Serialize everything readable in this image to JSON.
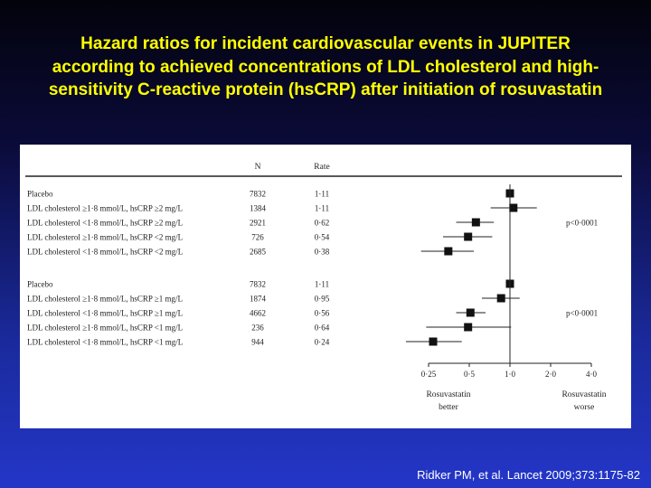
{
  "title_lines": [
    "Hazard ratios for incident cardiovascular events in JUPITER",
    "according to achieved concentrations of LDL cholesterol and high-",
    "sensitivity C-reactive protein (hsCRP) after initiation of rosuvastatin"
  ],
  "citation": "Ridker PM, et al. Lancet 2009;373:1175-82",
  "chart_data": {
    "type": "forest",
    "columns": {
      "n": "N",
      "rate": "Rate"
    },
    "x_scale": "log",
    "x_ticks": [
      {
        "value": 0.25,
        "label": "0·25"
      },
      {
        "value": 0.5,
        "label": "0·5"
      },
      {
        "value": 1.0,
        "label": "1·0"
      },
      {
        "value": 2.0,
        "label": "2·0"
      },
      {
        "value": 4.0,
        "label": "4·0"
      }
    ],
    "xlim": [
      0.22,
      4.2
    ],
    "reference_line": 1.0,
    "x_annotations": {
      "left": [
        "Rosuvastatin",
        "better"
      ],
      "right": [
        "Rosuvastatin",
        "worse"
      ]
    },
    "groups": [
      {
        "p_value": "p<0·0001",
        "rows": [
          {
            "label": "Placebo",
            "n": "7832",
            "rate": "1·11",
            "hr": 1.0,
            "ci": [
              0.96,
              1.04
            ]
          },
          {
            "label": "LDL cholesterol ≥1·8 mmol/L, hsCRP ≥2 mg/L",
            "n": "1384",
            "rate": "1·11",
            "hr": 1.06,
            "ci": [
              0.72,
              1.58
            ]
          },
          {
            "label": "LDL cholesterol <1·8 mmol/L, hsCRP ≥2 mg/L",
            "n": "2921",
            "rate": "0·62",
            "hr": 0.56,
            "ci": [
              0.4,
              0.76
            ]
          },
          {
            "label": "LDL cholesterol ≥1·8 mmol/L, hsCRP <2 mg/L",
            "n": "726",
            "rate": "0·54",
            "hr": 0.49,
            "ci": [
              0.32,
              0.74
            ]
          },
          {
            "label": "LDL cholesterol <1·8 mmol/L, hsCRP <2 mg/L",
            "n": "2685",
            "rate": "0·38",
            "hr": 0.35,
            "ci": [
              0.22,
              0.54
            ]
          }
        ]
      },
      {
        "p_value": "p<0·0001",
        "rows": [
          {
            "label": "Placebo",
            "n": "7832",
            "rate": "1·11",
            "hr": 1.0,
            "ci": [
              0.96,
              1.04
            ]
          },
          {
            "label": "LDL cholesterol ≥1·8 mmol/L, hsCRP ≥1 mg/L",
            "n": "1874",
            "rate": "0·95",
            "hr": 0.86,
            "ci": [
              0.62,
              1.18
            ]
          },
          {
            "label": "LDL cholesterol <1·8 mmol/L, hsCRP ≥1 mg/L",
            "n": "4662",
            "rate": "0·56",
            "hr": 0.51,
            "ci": [
              0.4,
              0.66
            ]
          },
          {
            "label": "LDL cholesterol ≥1·8 mmol/L, hsCRP <1 mg/L",
            "n": "236",
            "rate": "0·64",
            "hr": 0.49,
            "ci": [
              0.24,
              1.02
            ]
          },
          {
            "label": "LDL cholesterol <1·8 mmol/L, hsCRP <1 mg/L",
            "n": "944",
            "rate": "0·24",
            "hr": 0.27,
            "ci": [
              0.17,
              0.44
            ]
          }
        ]
      }
    ]
  },
  "colors": {
    "title": "#ffff00",
    "citation": "#ffffff",
    "panel_background": "#ffffff",
    "ink": "#222222",
    "marker": "#111111"
  }
}
